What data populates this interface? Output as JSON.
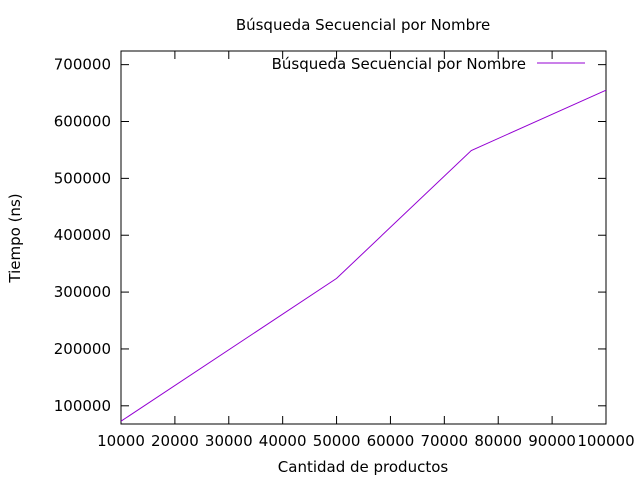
{
  "chart_data": {
    "type": "line",
    "title": "Búsqueda Secuencial por Nombre",
    "xlabel": "Cantidad de productos",
    "ylabel": "Tiempo (ns)",
    "xlim": [
      10000,
      100000
    ],
    "ylim": [
      68000,
      724000
    ],
    "x_ticks": [
      10000,
      20000,
      30000,
      40000,
      50000,
      60000,
      70000,
      80000,
      90000,
      100000
    ],
    "y_ticks": [
      100000,
      200000,
      300000,
      400000,
      500000,
      600000,
      700000
    ],
    "grid": false,
    "legend_position": "top-right",
    "series": [
      {
        "name": "Búsqueda Secuencial por Nombre",
        "color": "#9400d3",
        "x": [
          10000,
          50000,
          75000,
          100000
        ],
        "y": [
          73000,
          324000,
          549000,
          655000
        ]
      }
    ]
  }
}
